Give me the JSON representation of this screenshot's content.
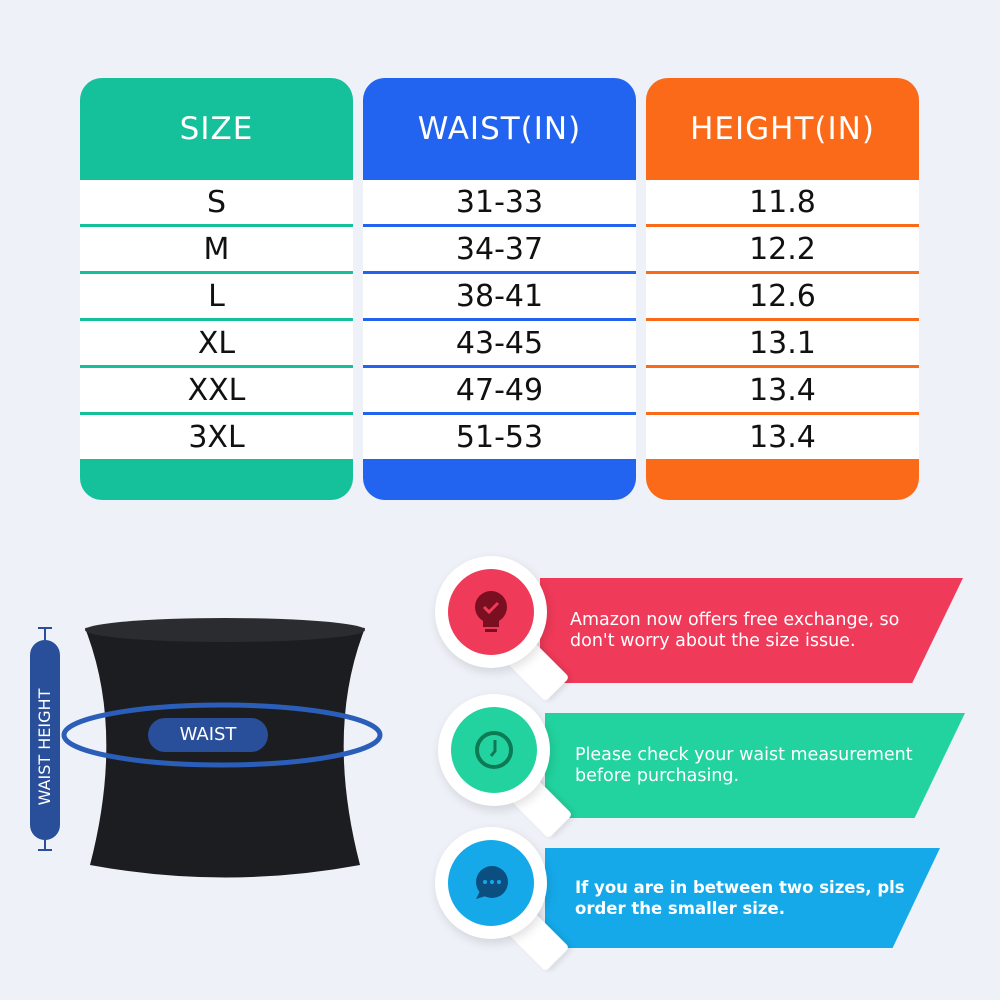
{
  "table": {
    "columns": [
      {
        "header": "SIZE",
        "color": "#14c19b",
        "values": [
          "S",
          "M",
          "L",
          "XL",
          "XXL",
          "3XL"
        ]
      },
      {
        "header": "WAIST(IN)",
        "color": "#2264ef",
        "values": [
          "31-33",
          "34-37",
          "38-41",
          "43-45",
          "47-49",
          "51-53"
        ]
      },
      {
        "header": "HEIGHT(IN)",
        "color": "#fb6a18",
        "values": [
          "11.8",
          "12.2",
          "12.6",
          "13.1",
          "13.4",
          "13.4"
        ]
      }
    ]
  },
  "diagram": {
    "waist_label": "WAIST",
    "height_label": "WAIST HEIGHT"
  },
  "tips": [
    {
      "icon": "lightbulb-check-icon",
      "color": "#f03a5a",
      "text": "Amazon now offers free exchange, so don't worry about the size issue."
    },
    {
      "icon": "clock-icon",
      "color": "#22d39f",
      "text": "Please check your waist measurement before purchasing."
    },
    {
      "icon": "chat-bubble-icon",
      "color": "#15a9ea",
      "text": "If you are in between two sizes, pls order the smaller size."
    }
  ]
}
